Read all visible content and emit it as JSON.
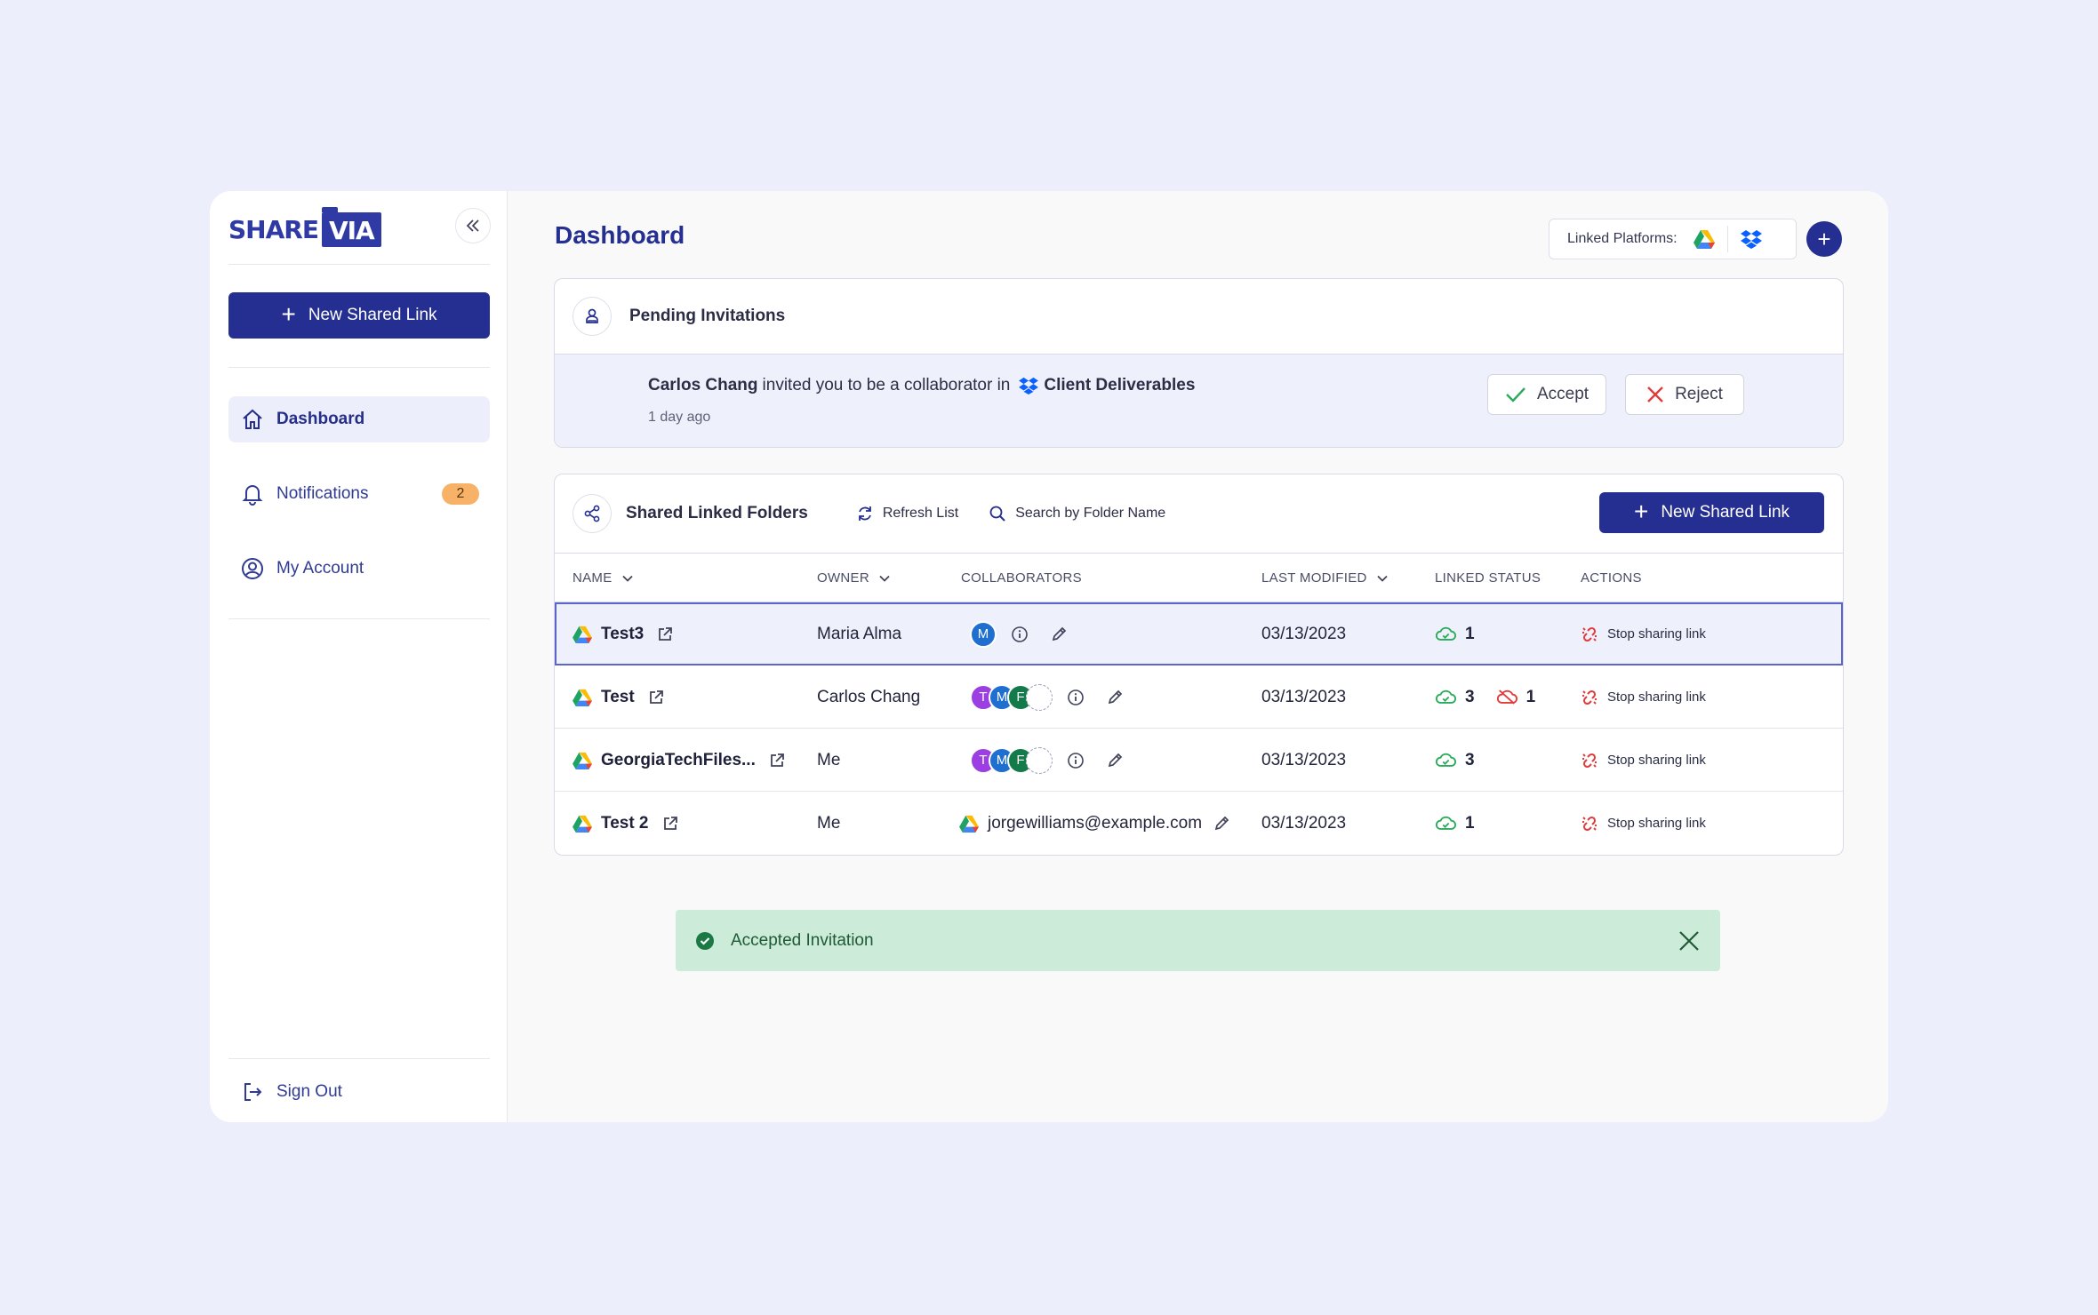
{
  "brand": {
    "logo_left": "SHARE",
    "logo_right": "VIA"
  },
  "sidebar": {
    "new_link_label": "New Shared Link",
    "items": [
      {
        "label": "Dashboard",
        "icon": "home-icon",
        "active": true
      },
      {
        "label": "Notifications",
        "icon": "bell-icon",
        "badge": "2"
      },
      {
        "label": "My Account",
        "icon": "user-circle-icon"
      }
    ],
    "sign_out_label": "Sign Out"
  },
  "header": {
    "title": "Dashboard",
    "linked_platforms_label": "Linked Platforms:",
    "platforms": [
      "google-drive-icon",
      "dropbox-icon"
    ]
  },
  "invitations": {
    "title": "Pending Invitations",
    "items": [
      {
        "inviter": "Carlos Chang",
        "message": "invited you to be a collaborator in",
        "folder": "Client Deliverables",
        "time": "1 day ago",
        "accept_label": "Accept",
        "reject_label": "Reject"
      }
    ]
  },
  "folders": {
    "title": "Shared Linked Folders",
    "refresh_label": "Refresh List",
    "search_placeholder": "Search by Folder Name",
    "new_link_label": "New Shared Link",
    "columns": {
      "name": "NAME",
      "owner": "OWNER",
      "collaborators": "COLLABORATORS",
      "last_modified": "LAST MODIFIED",
      "linked_status": "LINKED STATUS",
      "actions": "ACTIONS"
    },
    "rows": [
      {
        "name": "Test3",
        "owner": "Maria Alma",
        "collaborators": [
          {
            "initial": "M",
            "color": "#1f6fd1"
          }
        ],
        "modified": "03/13/2023",
        "linked": "1",
        "unlinked": "",
        "action": "Stop sharing link"
      },
      {
        "name": "Test",
        "owner": "Carlos Chang",
        "collaborators": [
          {
            "initial": "T",
            "color": "#9b3fe3"
          },
          {
            "initial": "M",
            "color": "#1f6fd1"
          },
          {
            "initial": "F",
            "color": "#137a4a"
          }
        ],
        "modified": "03/13/2023",
        "linked": "3",
        "unlinked": "1",
        "action": "Stop sharing link"
      },
      {
        "name": "GeorgiaTechFiles...",
        "owner": "Me",
        "collaborators": [
          {
            "initial": "T",
            "color": "#9b3fe3"
          },
          {
            "initial": "M",
            "color": "#1f6fd1"
          },
          {
            "initial": "F",
            "color": "#137a4a"
          }
        ],
        "modified": "03/13/2023",
        "linked": "3",
        "unlinked": "",
        "action": "Stop sharing link"
      },
      {
        "name": "Test 2",
        "owner": "Me",
        "collaborator_email": "jorgewilliams@example.com",
        "modified": "03/13/2023",
        "linked": "1",
        "unlinked": "",
        "action": "Stop sharing link"
      }
    ]
  },
  "toast": {
    "message": "Accepted Invitation"
  },
  "colors": {
    "primary": "#252f91",
    "success_bg": "#cdebd9",
    "badge": "#f7b267",
    "danger": "#e23b3b",
    "ok": "#2bab5b"
  }
}
